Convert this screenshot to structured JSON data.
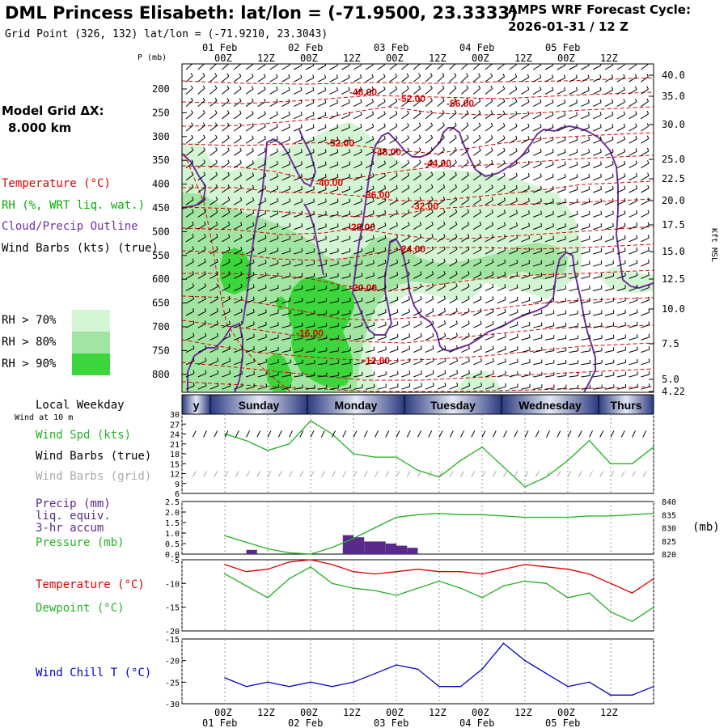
{
  "header": {
    "title": "DML Princess Elisabeth:  lat/lon = (-71.9500, 23.3333)",
    "subtitle": "Grid Point (326, 132) lat/lon = (-71.9210, 23.3043)",
    "forecast_line1": "AMPS WRF Forecast Cycle:",
    "forecast_line2": "2026-01-31 / 12  Z",
    "grid_label": "Model Grid ΔX:",
    "grid_value": "8.000 km"
  },
  "time_axis": {
    "top_dates": [
      "01 Feb",
      "02 Feb",
      "03 Feb",
      "04 Feb",
      "05 Feb"
    ],
    "bottom_dates": [
      "01 Feb",
      "02 Feb",
      "03 Feb",
      "04 Feb",
      "05 Feb"
    ],
    "hour_labels": [
      "00Z",
      "12Z",
      "00Z",
      "12Z",
      "00Z",
      "12Z",
      "00Z",
      "12Z",
      "00Z",
      "12Z"
    ],
    "bottom_hour_labels": [
      "00Z",
      "12Z",
      "00Z",
      "12Z",
      "00Z",
      "12Z",
      "00Z",
      "12Z",
      "00Z",
      "12Z"
    ]
  },
  "weekday_bar": {
    "label": "Local Weekday",
    "days": [
      "y",
      "Sunday",
      "Monday",
      "Tuesday",
      "Wednesday",
      "Thurs"
    ]
  },
  "legend": {
    "temperature": "Temperature (°C)",
    "rh": "RH (%, WRT liq. wat.)",
    "cloud": "Cloud/Precip Outline",
    "wind_barbs": "Wind Barbs (kts) (true)",
    "rh70": "RH > 70%",
    "rh80": "RH > 80%",
    "rh90": "RH > 90%",
    "wind_at_10m": "Wind at 10 m",
    "wind_spd": "Wind Spd (kts)",
    "wind_barbs_true": "Wind Barbs (true)",
    "wind_barbs_grid": "Wind Barbs (grid)",
    "precip1": "Precip (mm)",
    "precip2": "liq. equiv.",
    "precip3": "3-hr accum",
    "pressure": "Pressure (mb)",
    "pressure_unit": "(mb)",
    "temp_panel": "Temperature (°C)",
    "dewpoint": "Dewpoint (°C)",
    "windchill": "Wind Chill T (°C)"
  },
  "colors": {
    "temperature": "#e00000",
    "rh": "#00b000",
    "cloud": "#7030a0",
    "precip": "#5a2a8a",
    "pressure": "#22b022",
    "windchill": "#0000c0",
    "rh70": "#d4f5d4",
    "rh80": "#a2e5a2",
    "rh90": "#3cd63c"
  },
  "chart_data": [
    {
      "type": "cross-section",
      "title": "Time-height cross section",
      "ylabel": "P (mb)",
      "y_ticks": [
        "200",
        "250",
        "300",
        "350",
        "400",
        "450",
        "500",
        "550",
        "600",
        "650",
        "700",
        "750",
        "800"
      ],
      "right_label": "Kft MSL",
      "right_ticks": [
        "40.0",
        "35.0",
        "30.0",
        "25.0",
        "22.5",
        "20.0",
        "17.5",
        "15.0",
        "12.5",
        "10.0",
        "7.5",
        "5.0",
        "4.22"
      ],
      "isotherm_labels": [
        "-48.00",
        "-52.00",
        "-56.00",
        "-52.00",
        "-48.00",
        "-44.00",
        "-40.00",
        "-36.00",
        "-32.00",
        "-28.00",
        "-24.00",
        "-20.00",
        "-16.00",
        "-12.00"
      ]
    },
    {
      "type": "line",
      "title": "Wind Spd (kts)",
      "y_ticks": [
        "30",
        "27",
        "24",
        "21",
        "18",
        "15",
        "12",
        "9",
        "6"
      ],
      "ylim": [
        6,
        30
      ],
      "x_hours": [
        0,
        6,
        12,
        18,
        24,
        30,
        36,
        42,
        48,
        54,
        60,
        66,
        72,
        78,
        84,
        90,
        96,
        102,
        108,
        114,
        120
      ],
      "values": [
        24,
        22,
        19,
        21,
        28,
        24,
        18,
        17,
        17,
        13,
        11,
        16,
        20,
        14,
        8,
        11,
        16,
        22,
        15,
        15,
        20
      ]
    },
    {
      "type": "bar+line",
      "title": "Precip / Pressure",
      "y_ticks": [
        "2.5",
        "2.0",
        "1.5",
        "1.0",
        "0.5",
        "0.0"
      ],
      "right_ticks": [
        "840",
        "835",
        "830",
        "825",
        "820"
      ],
      "ylim": [
        0,
        2.5
      ],
      "precip_x_hours": [
        0,
        3,
        6,
        9,
        12,
        15,
        18,
        21,
        24,
        27,
        30,
        33,
        36,
        39,
        42,
        45,
        48,
        51
      ],
      "precip_mm": [
        0.0,
        0.0,
        0.2,
        0.0,
        0.0,
        0.0,
        0.0,
        0.0,
        0.0,
        0.0,
        0.0,
        0.9,
        0.8,
        0.6,
        0.6,
        0.5,
        0.4,
        0.3
      ],
      "pressure_x_hours": [
        0,
        6,
        12,
        18,
        24,
        30,
        36,
        42,
        48,
        54,
        60,
        66,
        72,
        78,
        84,
        90,
        96,
        102,
        108,
        114,
        120
      ],
      "pressure_mb": [
        827,
        824.5,
        822,
        820.5,
        820,
        822.5,
        826,
        830,
        834,
        835,
        835.5,
        835,
        835,
        834.5,
        834,
        834,
        834,
        834.5,
        834.5,
        835,
        835.5
      ]
    },
    {
      "type": "line",
      "title": "Temperature / Dewpoint",
      "y_ticks": [
        "-5",
        "-10",
        "-15",
        "-20"
      ],
      "ylim": [
        -20,
        -5
      ],
      "x_hours": [
        0,
        6,
        12,
        18,
        24,
        30,
        36,
        42,
        48,
        54,
        60,
        66,
        72,
        78,
        84,
        90,
        96,
        102,
        108,
        114,
        120
      ],
      "series": [
        {
          "name": "Temperature",
          "values": [
            -6.0,
            -7.5,
            -7.0,
            -5.5,
            -5.0,
            -6.0,
            -7.5,
            -8.0,
            -7.5,
            -7.0,
            -7.5,
            -7.5,
            -8.0,
            -7.0,
            -6.0,
            -6.5,
            -7.0,
            -8.0,
            -10.0,
            -12.0,
            -9.0
          ]
        },
        {
          "name": "Dewpoint",
          "values": [
            -8.0,
            -10.5,
            -13.0,
            -9.0,
            -6.5,
            -10.0,
            -11.0,
            -11.5,
            -12.5,
            -11.0,
            -9.5,
            -11.0,
            -13.0,
            -10.5,
            -9.5,
            -10.0,
            -13.0,
            -12.0,
            -16.0,
            -18.0,
            -15.0
          ]
        }
      ]
    },
    {
      "type": "line",
      "title": "Wind Chill T (°C)",
      "y_ticks": [
        "-15",
        "-20",
        "-25",
        "-30"
      ],
      "ylim": [
        -30,
        -15
      ],
      "x_hours": [
        0,
        6,
        12,
        18,
        24,
        30,
        36,
        42,
        48,
        54,
        60,
        66,
        72,
        78,
        84,
        90,
        96,
        102,
        108,
        114,
        120
      ],
      "values": [
        -24,
        -26,
        -25,
        -26,
        -25,
        -26,
        -25,
        -23,
        -21,
        -22,
        -26,
        -26,
        -22,
        -16,
        -20,
        -23,
        -26,
        -25,
        -28,
        -28,
        -26
      ]
    }
  ]
}
